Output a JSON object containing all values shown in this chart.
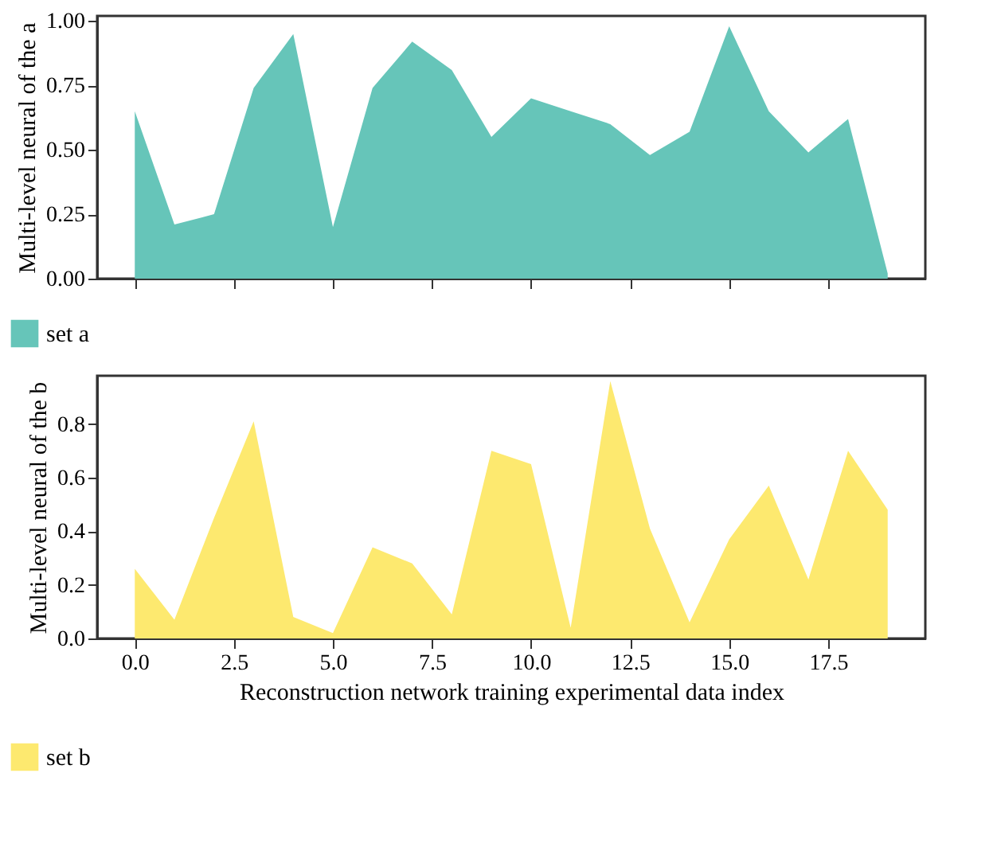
{
  "chart_data": [
    {
      "type": "area",
      "ylabel": "Multi-level neural of the a",
      "x": [
        0,
        1,
        2,
        3,
        4,
        5,
        6,
        7,
        8,
        9,
        10,
        11,
        12,
        13,
        14,
        15,
        16,
        17,
        18,
        19
      ],
      "series": [
        {
          "name": "set a",
          "color": "#66c5b9",
          "values": [
            0.65,
            0.21,
            0.25,
            0.74,
            0.95,
            0.2,
            0.74,
            0.92,
            0.81,
            0.55,
            0.7,
            0.65,
            0.6,
            0.48,
            0.57,
            0.98,
            0.65,
            0.49,
            0.62,
            0.02
          ]
        }
      ],
      "xlim": [
        -0.95,
        19.95
      ],
      "xticks": [
        {
          "value": 0,
          "label": null
        },
        {
          "value": 2.5,
          "label": null
        },
        {
          "value": 5,
          "label": null
        },
        {
          "value": 7.5,
          "label": null
        },
        {
          "value": 10,
          "label": null
        },
        {
          "value": 12.5,
          "label": null
        },
        {
          "value": 15,
          "label": null
        },
        {
          "value": 17.5,
          "label": null
        }
      ],
      "ylim": [
        0,
        1.02
      ],
      "yticks": [
        {
          "value": 0,
          "label": "0.00"
        },
        {
          "value": 0.25,
          "label": "0.25"
        },
        {
          "value": 0.5,
          "label": "0.50"
        },
        {
          "value": 0.75,
          "label": "0.75"
        },
        {
          "value": 1,
          "label": "1.00"
        }
      ],
      "tick_labels": "y",
      "legend": "bottom",
      "grid": false
    },
    {
      "type": "area",
      "xlabel": "Reconstruction network training experimental data index",
      "ylabel": "Multi-level neural of the b",
      "x": [
        0,
        1,
        2,
        3,
        4,
        5,
        6,
        7,
        8,
        9,
        10,
        11,
        12,
        13,
        14,
        15,
        16,
        17,
        18,
        19
      ],
      "series": [
        {
          "name": "set b",
          "color": "#fde96f",
          "values": [
            0.26,
            0.07,
            0.45,
            0.81,
            0.08,
            0.02,
            0.34,
            0.28,
            0.09,
            0.7,
            0.65,
            0.04,
            0.96,
            0.41,
            0.06,
            0.37,
            0.57,
            0.22,
            0.7,
            0.48
          ]
        }
      ],
      "xlim": [
        -0.95,
        19.95
      ],
      "xticks": [
        {
          "value": 0,
          "label": "0.0"
        },
        {
          "value": 2.5,
          "label": "2.5"
        },
        {
          "value": 5,
          "label": "5.0"
        },
        {
          "value": 7.5,
          "label": "7.5"
        },
        {
          "value": 10,
          "label": "10.0"
        },
        {
          "value": 12.5,
          "label": "12.5"
        },
        {
          "value": 15,
          "label": "15.0"
        },
        {
          "value": 17.5,
          "label": "17.5"
        }
      ],
      "ylim": [
        0,
        0.98
      ],
      "yticks": [
        {
          "value": 0,
          "label": "0.0"
        },
        {
          "value": 0.2,
          "label": "0.2"
        },
        {
          "value": 0.4,
          "label": "0.4"
        },
        {
          "value": 0.6,
          "label": "0.6"
        },
        {
          "value": 0.8,
          "label": "0.8"
        }
      ],
      "legend": "bottom",
      "grid": false
    }
  ]
}
